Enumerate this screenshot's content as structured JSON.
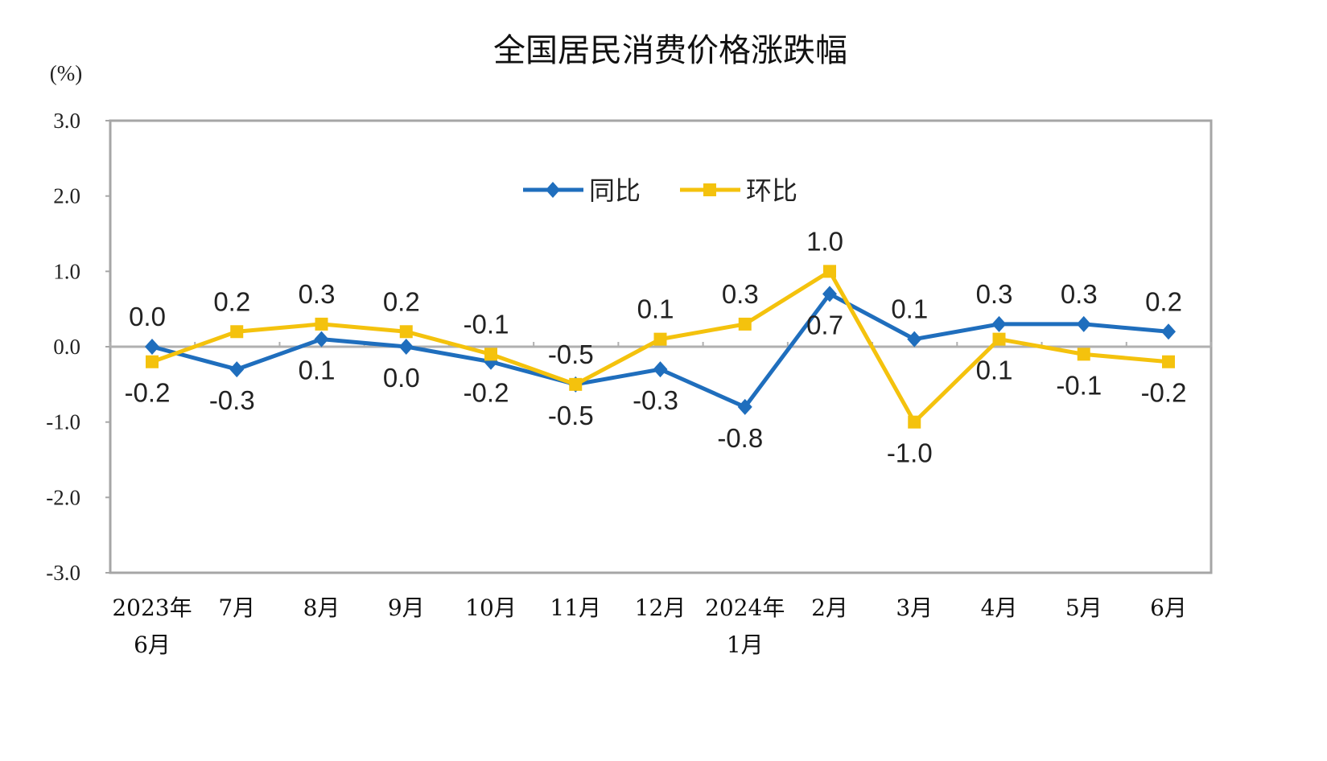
{
  "chart_data": {
    "type": "line",
    "title": "全国居民消费价格涨跌幅",
    "ylabel": "(%)",
    "ylim": [
      -3.0,
      3.0
    ],
    "yticks": [
      "3.0",
      "2.0",
      "1.0",
      "0.0",
      "-1.0",
      "-2.0",
      "-3.0"
    ],
    "categories": [
      [
        "2023年",
        "6月"
      ],
      [
        "7月"
      ],
      [
        "8月"
      ],
      [
        "9月"
      ],
      [
        "10月"
      ],
      [
        "11月"
      ],
      [
        "12月"
      ],
      [
        "2024年",
        "1月"
      ],
      [
        "2月"
      ],
      [
        "3月"
      ],
      [
        "4月"
      ],
      [
        "5月"
      ],
      [
        "6月"
      ]
    ],
    "legend_position": "top-center",
    "grid": false,
    "series": [
      {
        "name": "同比",
        "color": "#1f6ebd",
        "marker": "diamond",
        "values": [
          0.0,
          -0.3,
          0.1,
          0.0,
          -0.2,
          -0.5,
          -0.3,
          -0.8,
          0.7,
          0.1,
          0.3,
          0.3,
          0.2
        ]
      },
      {
        "name": "环比",
        "color": "#f4c20d",
        "marker": "square",
        "values": [
          -0.2,
          0.2,
          0.3,
          0.2,
          -0.1,
          -0.5,
          0.1,
          0.3,
          1.0,
          -1.0,
          0.1,
          -0.1,
          -0.2
        ]
      }
    ]
  }
}
